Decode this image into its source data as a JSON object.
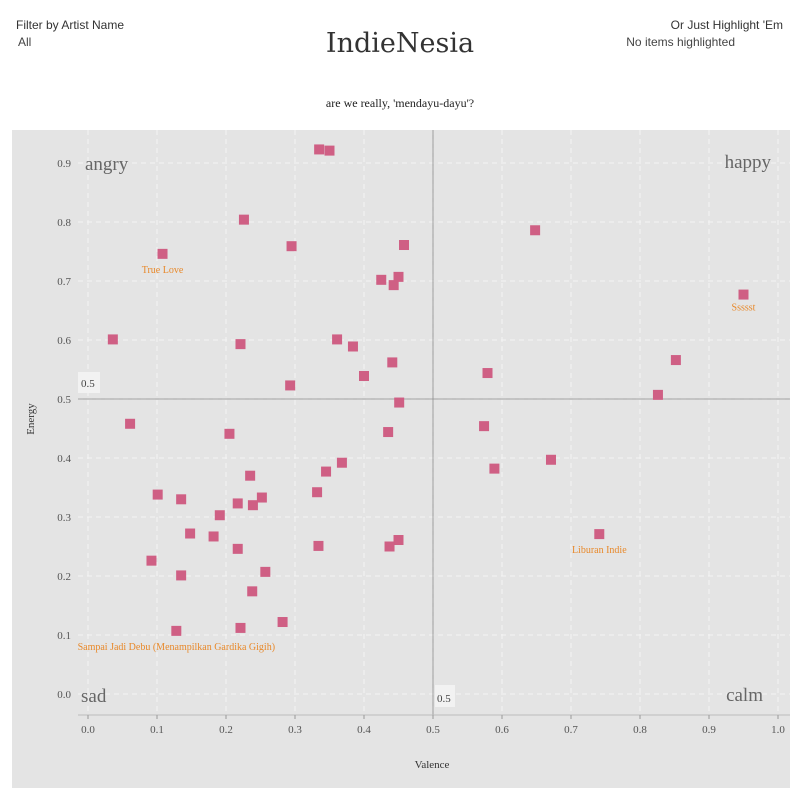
{
  "filter": {
    "label": "Filter by Artist Name",
    "value": "All"
  },
  "highlight": {
    "label": "Or Just Highlight 'Em",
    "value": "No items highlighted"
  },
  "title": "IndieNesia",
  "subtitle": "are we really, 'mendayu-dayu'?",
  "colors": {
    "marker": "#cf5f84",
    "annotation": "#e8892b",
    "plot_bg": "#e4e4e4",
    "grid": "#f4f4f4"
  },
  "chart_data": {
    "type": "scatter",
    "xlabel": "Valence",
    "ylabel": "Energy",
    "xlim": [
      -0.02,
      1.02
    ],
    "ylim": [
      -0.03,
      0.965
    ],
    "xticks": [
      "0.0",
      "0.1",
      "0.2",
      "0.3",
      "0.4",
      "0.5",
      "0.6",
      "0.7",
      "0.8",
      "0.9",
      "1.0"
    ],
    "yticks": [
      "0.0",
      "0.1",
      "0.2",
      "0.3",
      "0.4",
      "0.5",
      "0.6",
      "0.7",
      "0.8",
      "0.9"
    ],
    "grid": true,
    "reference_lines": {
      "x": 0.5,
      "y": 0.5,
      "x_label": "0.5",
      "y_label": "0.5"
    },
    "quadrant_labels": {
      "top_left": "angry",
      "top_right": "happy",
      "bottom_left": "sad",
      "bottom_right": "calm"
    },
    "points": [
      [
        0.335,
        0.923
      ],
      [
        0.35,
        0.921
      ],
      [
        0.226,
        0.804
      ],
      [
        0.295,
        0.759
      ],
      [
        0.108,
        0.746
      ],
      [
        0.458,
        0.761
      ],
      [
        0.648,
        0.786
      ],
      [
        0.425,
        0.702
      ],
      [
        0.443,
        0.693
      ],
      [
        0.45,
        0.707
      ],
      [
        0.95,
        0.677
      ],
      [
        0.036,
        0.601
      ],
      [
        0.221,
        0.593
      ],
      [
        0.361,
        0.601
      ],
      [
        0.384,
        0.589
      ],
      [
        0.852,
        0.566
      ],
      [
        0.441,
        0.562
      ],
      [
        0.579,
        0.544
      ],
      [
        0.4,
        0.539
      ],
      [
        0.293,
        0.523
      ],
      [
        0.826,
        0.507
      ],
      [
        0.451,
        0.494
      ],
      [
        0.061,
        0.458
      ],
      [
        0.205,
        0.441
      ],
      [
        0.435,
        0.444
      ],
      [
        0.574,
        0.454
      ],
      [
        0.368,
        0.392
      ],
      [
        0.671,
        0.397
      ],
      [
        0.345,
        0.377
      ],
      [
        0.235,
        0.37
      ],
      [
        0.589,
        0.382
      ],
      [
        0.101,
        0.338
      ],
      [
        0.135,
        0.33
      ],
      [
        0.332,
        0.342
      ],
      [
        0.252,
        0.333
      ],
      [
        0.217,
        0.323
      ],
      [
        0.239,
        0.32
      ],
      [
        0.191,
        0.303
      ],
      [
        0.148,
        0.272
      ],
      [
        0.182,
        0.267
      ],
      [
        0.741,
        0.271
      ],
      [
        0.45,
        0.261
      ],
      [
        0.217,
        0.246
      ],
      [
        0.334,
        0.251
      ],
      [
        0.437,
        0.25
      ],
      [
        0.092,
        0.226
      ],
      [
        0.257,
        0.207
      ],
      [
        0.135,
        0.201
      ],
      [
        0.238,
        0.174
      ],
      [
        0.282,
        0.122
      ],
      [
        0.221,
        0.112
      ],
      [
        0.128,
        0.107
      ]
    ],
    "annotations": [
      {
        "text": "True Love",
        "x": 0.108,
        "y": 0.746
      },
      {
        "text": "Ssssst",
        "x": 0.95,
        "y": 0.677
      },
      {
        "text": "Liburan Indie",
        "x": 0.741,
        "y": 0.271
      },
      {
        "text": "Sampai Jadi Debu (Menampilkan Gardika Gigih)",
        "x": 0.128,
        "y": 0.107
      }
    ]
  }
}
